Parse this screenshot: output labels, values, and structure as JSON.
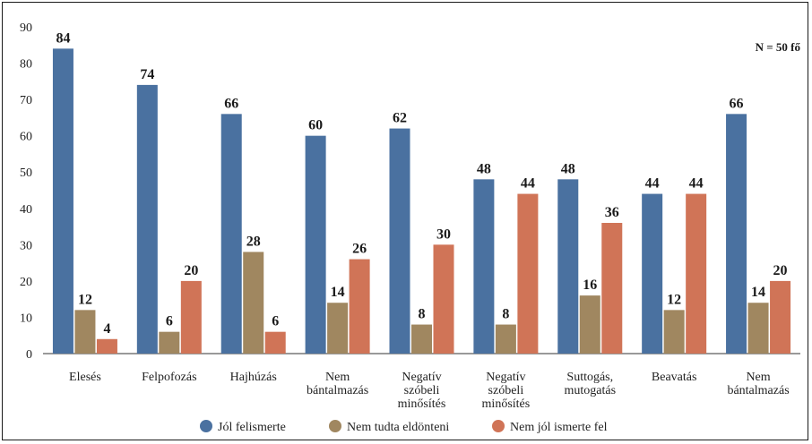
{
  "chart_data": {
    "type": "bar",
    "title": "",
    "xlabel": "",
    "ylabel": "",
    "ylim": [
      0,
      90
    ],
    "yticks": [
      0,
      10,
      20,
      30,
      40,
      50,
      60,
      70,
      80,
      90
    ],
    "grid": false,
    "legend_position": "bottom",
    "annotation": "N = 50 fő",
    "categories": [
      [
        "Elesés"
      ],
      [
        "Felpofozás"
      ],
      [
        "Hajhúzás"
      ],
      [
        "Nem",
        "bántalmazás"
      ],
      [
        "Negatív",
        "szóbeli",
        "minősítés"
      ],
      [
        "Negatív",
        "szóbeli",
        "minősítés"
      ],
      [
        "Suttogás,",
        "mutogatás"
      ],
      [
        "Beavatás"
      ],
      [
        "Nem",
        "bántalmazás"
      ]
    ],
    "series": [
      {
        "name": "Jól felismerte",
        "color": "#4a71a0",
        "values": [
          84,
          74,
          66,
          60,
          62,
          48,
          48,
          44,
          66
        ]
      },
      {
        "name": "Nem tudta eldönteni",
        "color": "#a08760",
        "values": [
          12,
          6,
          28,
          14,
          8,
          8,
          16,
          12,
          14
        ]
      },
      {
        "name": "Nem jól ismerte fel",
        "color": "#d07457",
        "values": [
          4,
          20,
          6,
          26,
          30,
          44,
          36,
          44,
          20
        ]
      }
    ]
  }
}
